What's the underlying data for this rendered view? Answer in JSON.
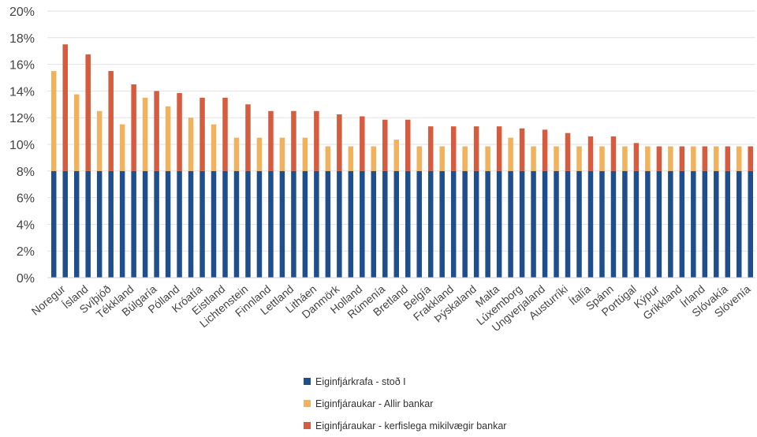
{
  "chart_data": {
    "type": "bar",
    "stacked": true,
    "ylim": [
      0,
      20
    ],
    "y_ticks": [
      "0%",
      "2%",
      "4%",
      "6%",
      "8%",
      "10%",
      "12%",
      "14%",
      "16%",
      "18%",
      "20%"
    ],
    "grid": true,
    "legend_position": "bottom",
    "colors": {
      "base": "#1f4e8c",
      "all_banks": "#f0b25c",
      "systemic": "#d65c3f"
    },
    "legend": [
      "Eiginfjárkrafa - stoð I",
      "Eiginfjáraukar - Allir bankar",
      "Eiginfjáraukar - kerfislega mikilvægir bankar"
    ],
    "pairs": [
      {
        "country": "Noregur",
        "label": "Noregur",
        "all_banks": 15.5,
        "systemic": 17.5
      },
      {
        "country": "Ísland",
        "label": "Ísland",
        "all_banks": 13.75,
        "systemic": 16.75
      },
      {
        "country": "Svíþjóð",
        "label": "Svíþjóð",
        "all_banks": 12.5,
        "systemic": 15.5
      },
      {
        "country": "Tékkland",
        "label": "Tékkland",
        "all_banks": 11.5,
        "systemic": 14.5
      },
      {
        "country": "Búlgaría",
        "label": "Búlgaría",
        "all_banks": 13.5,
        "systemic": 14.0
      },
      {
        "country": "Pólland",
        "label": "Pólland",
        "all_banks": 12.85,
        "systemic": 13.85
      },
      {
        "country": "Króatía",
        "label": "Króatía",
        "all_banks": 12.0,
        "systemic": 13.5
      },
      {
        "country": "Eistland",
        "label": "Eistland",
        "all_banks": 11.5,
        "systemic": 13.5
      },
      {
        "country": "Lichtenstein",
        "label": "Lichtenstein",
        "all_banks": 10.5,
        "systemic": 13.0
      },
      {
        "country": "Finnland",
        "label": "Finnland",
        "all_banks": 10.5,
        "systemic": 12.5
      },
      {
        "country": "Lettland",
        "label": "Lettland",
        "all_banks": 10.5,
        "systemic": 12.5
      },
      {
        "country": "Litháen",
        "label": "Litháen",
        "all_banks": 10.5,
        "systemic": 12.5
      },
      {
        "country": "Danmörk",
        "label": "Danmörk",
        "all_banks": 9.85,
        "systemic": 12.25
      },
      {
        "country": "Holland",
        "label": "Holland",
        "all_banks": 9.85,
        "systemic": 12.1
      },
      {
        "country": "Rúmenía",
        "label": "Rúmenía",
        "all_banks": 9.85,
        "systemic": 11.85
      },
      {
        "country": "Bretland",
        "label": "Bretland",
        "all_banks": 10.35,
        "systemic": 11.85
      },
      {
        "country": "Belgía",
        "label": "Belgía",
        "all_banks": 9.85,
        "systemic": 11.35
      },
      {
        "country": "Frakkland",
        "label": "Frakkland",
        "all_banks": 9.85,
        "systemic": 11.35
      },
      {
        "country": "Þýskaland",
        "label": "Þýskaland",
        "all_banks": 9.85,
        "systemic": 11.35
      },
      {
        "country": "Malta",
        "label": "Malta",
        "all_banks": 9.85,
        "systemic": 11.35
      },
      {
        "country": "Lúxemborg",
        "label": "Lúxemborg",
        "all_banks": 10.5,
        "systemic": 11.2
      },
      {
        "country": "Ungverjaland",
        "label": "Ungverjaland",
        "all_banks": 9.85,
        "systemic": 11.1
      },
      {
        "country": "Austurríki",
        "label": "Austurríki",
        "all_banks": 9.85,
        "systemic": 10.85
      },
      {
        "country": "Ítalía",
        "label": "Ítalía",
        "all_banks": 9.85,
        "systemic": 10.6
      },
      {
        "country": "Spánn",
        "label": "Spánn",
        "all_banks": 9.85,
        "systemic": 10.6
      },
      {
        "country": "Portúgal",
        "label": "Portúgal",
        "all_banks": 9.85,
        "systemic": 10.1
      },
      {
        "country": "Kýpur",
        "label": "Kýpur",
        "all_banks": 9.85,
        "systemic": 9.85
      },
      {
        "country": "Grikkland",
        "label": "Grikkland",
        "all_banks": 9.85,
        "systemic": 9.85
      },
      {
        "country": "Írland",
        "label": "Írland",
        "all_banks": 9.85,
        "systemic": 9.85
      },
      {
        "country": "Slóvakía",
        "label": "Slóvakía",
        "all_banks": 9.85,
        "systemic": 9.85
      },
      {
        "country": "Slóvenía",
        "label": "Slóvenía",
        "all_banks": 9.85,
        "systemic": 9.85
      }
    ],
    "base_value": 8.0
  }
}
